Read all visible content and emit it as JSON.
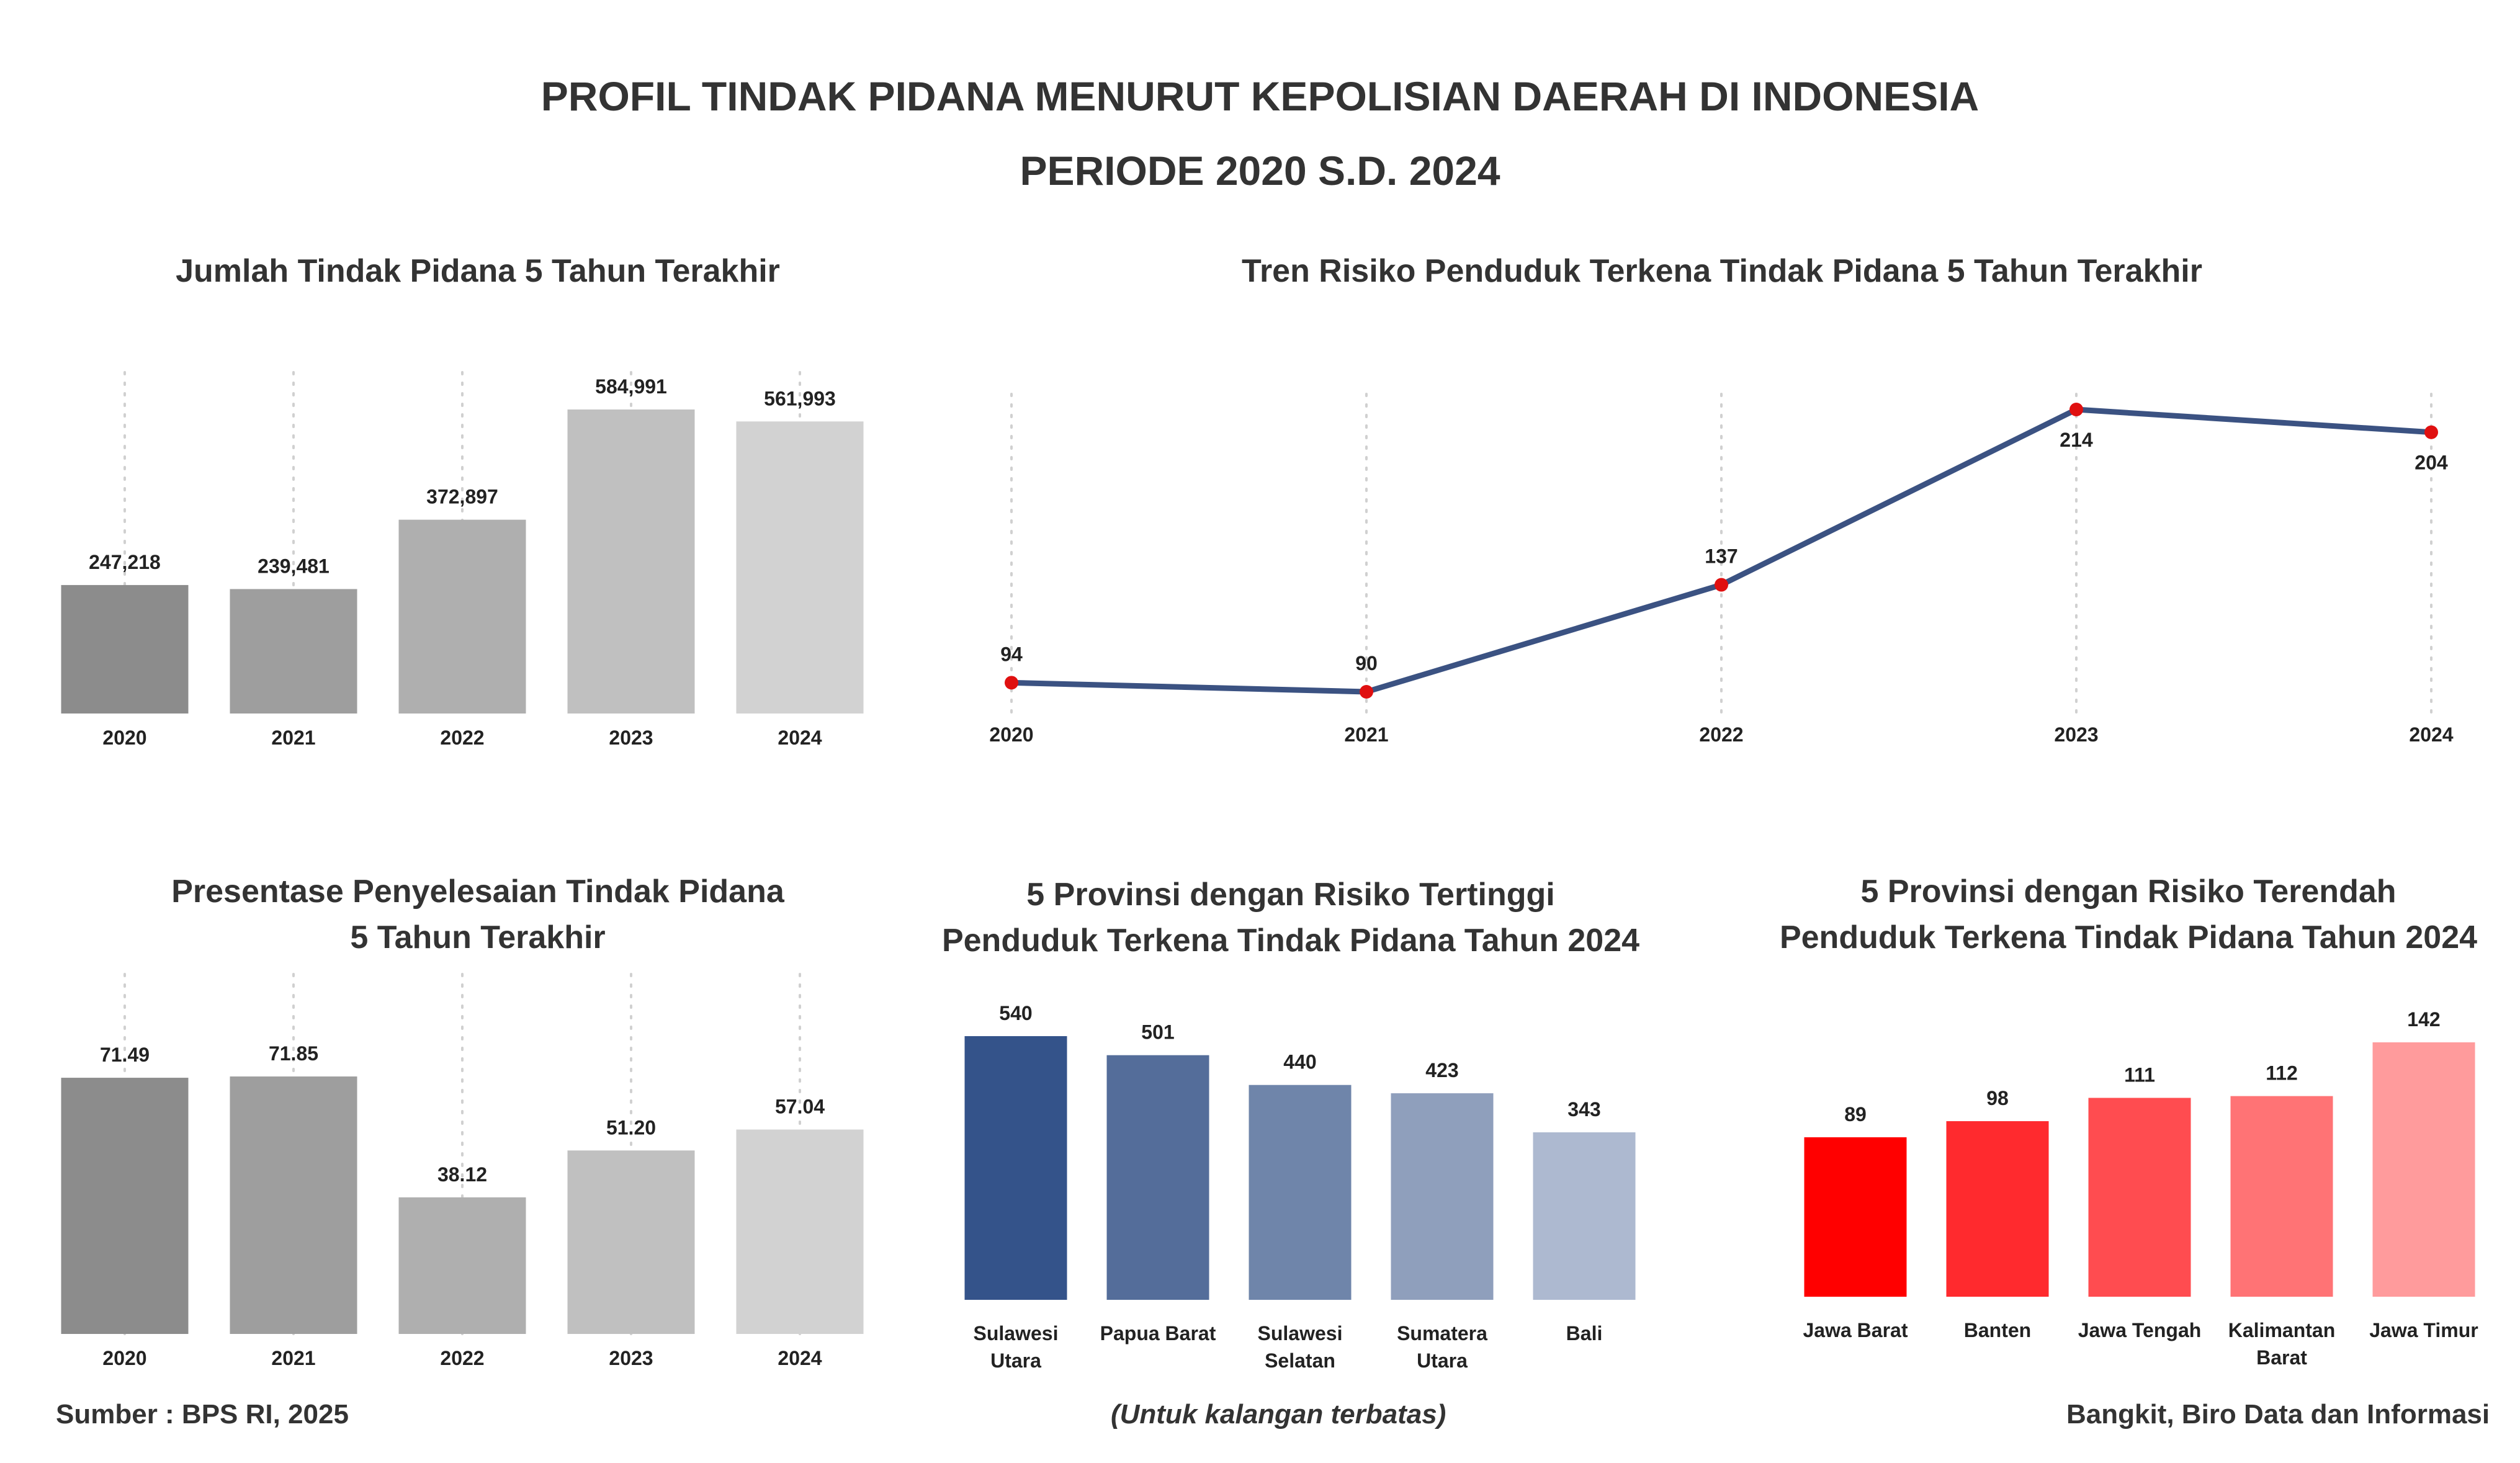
{
  "header": {
    "title_line1": "PROFIL TINDAK PIDANA MENURUT KEPOLISIAN DAERAH DI INDONESIA",
    "title_line2": "PERIODE 2020 S.D. 2024"
  },
  "footer": {
    "source": "Sumber : BPS RI, 2025",
    "note": "(Untuk kalangan terbatas)",
    "credit": "Bangkit, Biro Data dan Informasi"
  },
  "chart_data": [
    {
      "id": "jumlah",
      "type": "bar",
      "title": "Jumlah Tindak Pidana 5 Tahun Terakhir",
      "categories": [
        "2020",
        "2021",
        "2022",
        "2023",
        "2024"
      ],
      "values": [
        247218,
        239481,
        372897,
        584991,
        561993
      ],
      "value_labels": [
        "247,218",
        "239,481",
        "372,897",
        "584,991",
        "561,993"
      ],
      "colors": [
        "#8c8c8c",
        "#9e9e9e",
        "#afafaf",
        "#c0c0c0",
        "#d2d2d2"
      ],
      "grid": "vertical dotted"
    },
    {
      "id": "tren",
      "type": "line",
      "title": "Tren Risiko Penduduk Terkena Tindak Pidana 5 Tahun Terakhir",
      "x": [
        "2020",
        "2021",
        "2022",
        "2023",
        "2024"
      ],
      "values": [
        94,
        90,
        137,
        214,
        204
      ],
      "value_labels": [
        "94",
        "90",
        "137",
        "214",
        "204"
      ],
      "line_color": "#3b5282",
      "marker_color": "#e01010",
      "grid": "vertical dotted"
    },
    {
      "id": "presentase",
      "type": "bar",
      "title_lines": [
        "Presentase Penyelesaian Tindak Pidana",
        "5 Tahun Terakhir"
      ],
      "categories": [
        "2020",
        "2021",
        "2022",
        "2023",
        "2024"
      ],
      "values": [
        71.49,
        71.85,
        38.12,
        51.2,
        57.04
      ],
      "value_labels": [
        "71.49",
        "71.85",
        "38.12",
        "51.20",
        "57.04"
      ],
      "colors": [
        "#8c8c8c",
        "#9e9e9e",
        "#afafaf",
        "#c0c0c0",
        "#d2d2d2"
      ],
      "grid": "vertical dotted"
    },
    {
      "id": "tertinggi",
      "type": "bar",
      "title_lines": [
        "5 Provinsi dengan Risiko Tertinggi",
        "Penduduk Terkena Tindak Pidana Tahun 2024"
      ],
      "categories": [
        [
          "Sulawesi",
          "Utara"
        ],
        [
          "Papua Barat"
        ],
        [
          "Sulawesi",
          "Selatan"
        ],
        [
          "Sumatera",
          "Utara"
        ],
        [
          "Bali"
        ]
      ],
      "values": [
        540,
        501,
        440,
        423,
        343
      ],
      "value_labels": [
        "540",
        "501",
        "440",
        "423",
        "343"
      ],
      "colors": [
        "#34538a",
        "#546d9a",
        "#6f85aa",
        "#8f9fbc",
        "#adb9d0"
      ]
    },
    {
      "id": "terendah",
      "type": "bar",
      "title_lines": [
        "5 Provinsi dengan Risiko Terendah",
        "Penduduk Terkena Tindak Pidana Tahun 2024"
      ],
      "categories": [
        [
          "Jawa Barat"
        ],
        [
          "Banten"
        ],
        [
          "Jawa Tengah"
        ],
        [
          "Kalimantan",
          "Barat"
        ],
        [
          "Jawa Timur"
        ]
      ],
      "values": [
        89,
        98,
        111,
        112,
        142
      ],
      "value_labels": [
        "89",
        "98",
        "111",
        "112",
        "142"
      ],
      "colors": [
        "#ff0000",
        "#ff2a2e",
        "#ff4c50",
        "#ff7375",
        "#ff9b9c"
      ]
    }
  ]
}
